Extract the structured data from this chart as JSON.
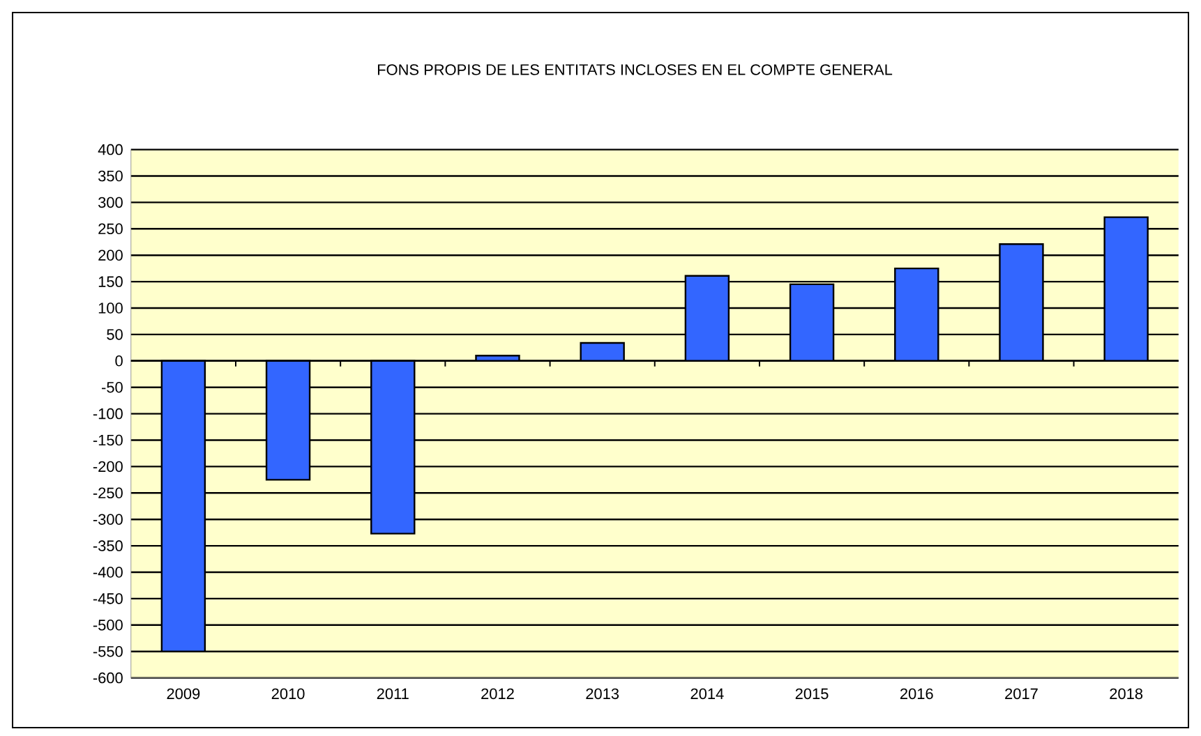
{
  "chart_data": {
    "type": "bar",
    "title": "FONS PROPIS DE LES ENTITATS INCLOSES EN EL COMPTE GENERAL",
    "categories": [
      "2009",
      "2010",
      "2011",
      "2012",
      "2013",
      "2014",
      "2015",
      "2016",
      "2017",
      "2018"
    ],
    "values": [
      -550,
      -225,
      -327,
      10,
      34,
      161,
      145,
      175,
      221,
      272
    ],
    "color": "#3366ff",
    "ylim": [
      -600,
      400
    ],
    "yticks": [
      -600,
      -550,
      -500,
      -450,
      -400,
      -350,
      -300,
      -250,
      -200,
      -150,
      -100,
      -50,
      0,
      50,
      100,
      150,
      200,
      250,
      300,
      350,
      400
    ],
    "grid": "y"
  }
}
